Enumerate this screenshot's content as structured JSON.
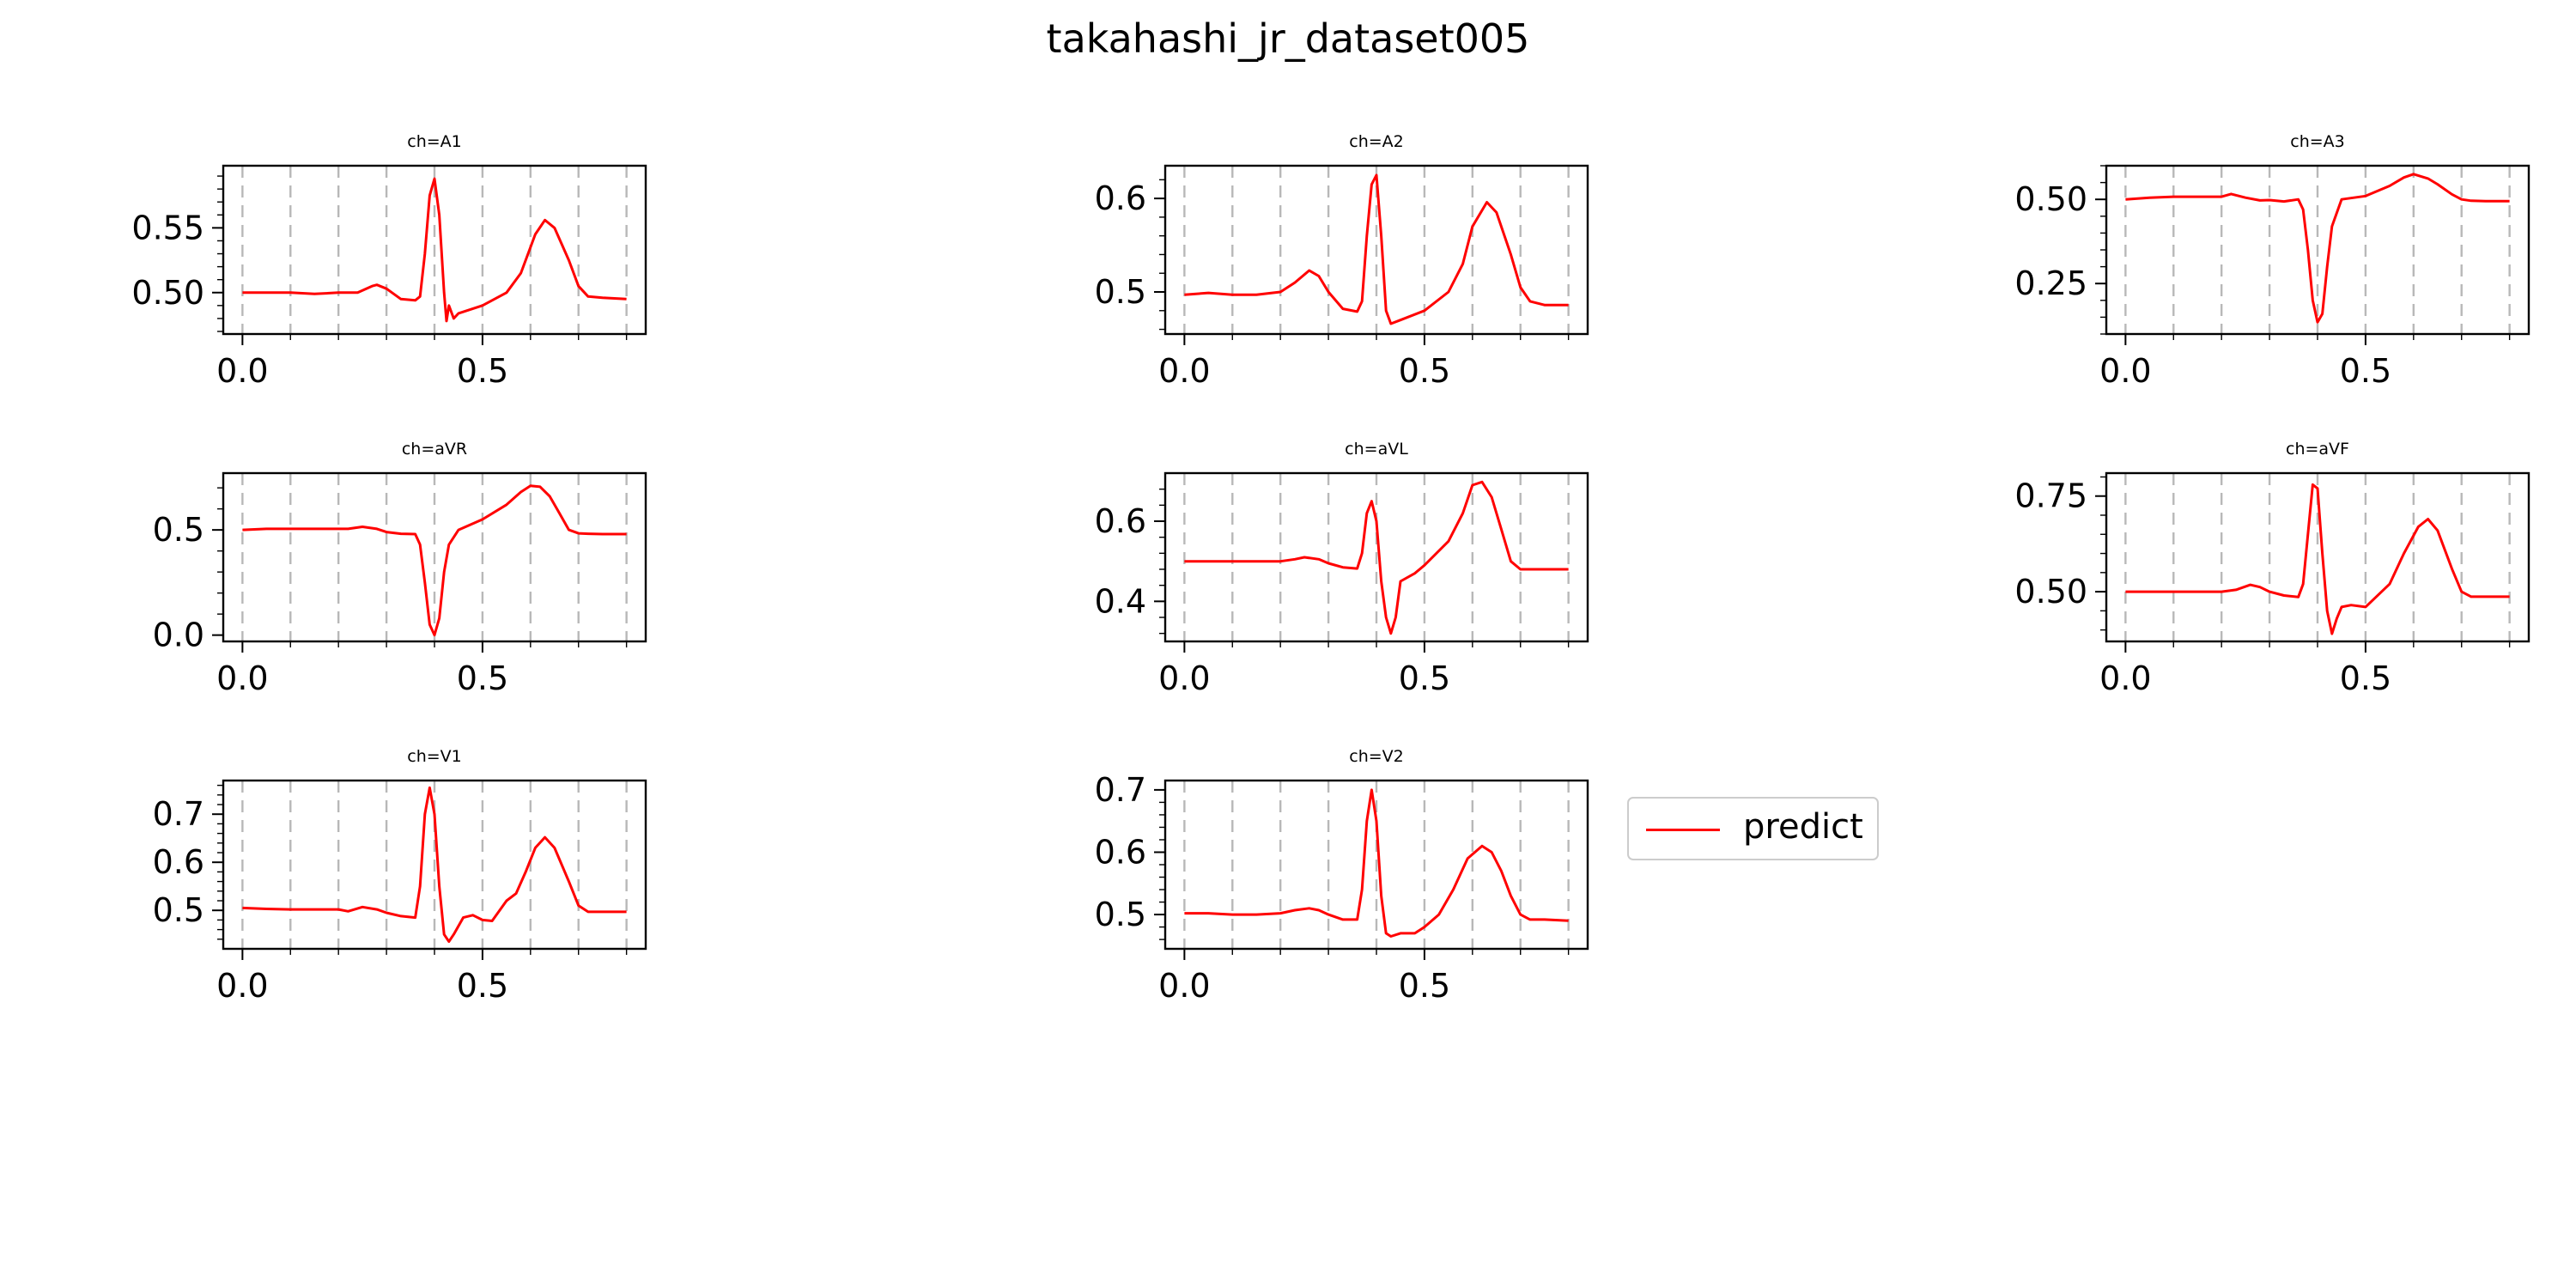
{
  "title": "takahashi_jr_dataset005",
  "legend": {
    "label": "predict",
    "color": "#ff0000",
    "placement": "right of panel ch=V2"
  },
  "grid": {
    "x_vertical_dashed": true,
    "x_grid_step": 0.1,
    "color": "#b8b8b8"
  },
  "chart_data": [
    {
      "type": "line",
      "title": "ch=A1",
      "xlim": [
        -0.04,
        0.84
      ],
      "ylim": [
        0.468,
        0.598
      ],
      "xticks": [
        0.0,
        0.5
      ],
      "xtick_labels": [
        "0.0",
        "0.5"
      ],
      "yticks": [
        0.5,
        0.55
      ],
      "ytick_labels": [
        "0.50",
        "0.55"
      ],
      "series": [
        {
          "name": "predict",
          "color": "#ff0000",
          "x": [
            0.0,
            0.05,
            0.1,
            0.15,
            0.2,
            0.24,
            0.27,
            0.28,
            0.3,
            0.33,
            0.36,
            0.37,
            0.38,
            0.39,
            0.4,
            0.41,
            0.42,
            0.425,
            0.43,
            0.44,
            0.45,
            0.5,
            0.55,
            0.58,
            0.61,
            0.63,
            0.65,
            0.68,
            0.7,
            0.72,
            0.75,
            0.8
          ],
          "y": [
            0.5,
            0.5,
            0.5,
            0.499,
            0.5,
            0.5,
            0.505,
            0.506,
            0.503,
            0.495,
            0.494,
            0.497,
            0.53,
            0.575,
            0.588,
            0.56,
            0.5,
            0.478,
            0.49,
            0.48,
            0.484,
            0.49,
            0.5,
            0.515,
            0.545,
            0.556,
            0.55,
            0.525,
            0.505,
            0.497,
            0.496,
            0.495
          ]
        }
      ]
    },
    {
      "type": "line",
      "title": "ch=A2",
      "xlim": [
        -0.04,
        0.84
      ],
      "ylim": [
        0.455,
        0.635
      ],
      "xticks": [
        0.0,
        0.5
      ],
      "xtick_labels": [
        "0.0",
        "0.5"
      ],
      "yticks": [
        0.5,
        0.6
      ],
      "ytick_labels": [
        "0.5",
        "0.6"
      ],
      "series": [
        {
          "name": "predict",
          "color": "#ff0000",
          "x": [
            0.0,
            0.05,
            0.1,
            0.15,
            0.2,
            0.23,
            0.26,
            0.28,
            0.3,
            0.33,
            0.36,
            0.37,
            0.38,
            0.39,
            0.4,
            0.41,
            0.42,
            0.43,
            0.45,
            0.5,
            0.55,
            0.58,
            0.6,
            0.63,
            0.65,
            0.68,
            0.7,
            0.72,
            0.75,
            0.8
          ],
          "y": [
            0.497,
            0.499,
            0.497,
            0.497,
            0.5,
            0.51,
            0.523,
            0.517,
            0.5,
            0.482,
            0.479,
            0.49,
            0.56,
            0.615,
            0.625,
            0.56,
            0.48,
            0.466,
            0.47,
            0.48,
            0.5,
            0.53,
            0.57,
            0.596,
            0.585,
            0.54,
            0.505,
            0.49,
            0.486,
            0.486
          ]
        }
      ]
    },
    {
      "type": "line",
      "title": "ch=A3",
      "xlim": [
        -0.04,
        0.84
      ],
      "ylim": [
        0.1,
        0.6
      ],
      "xticks": [
        0.0,
        0.5
      ],
      "xtick_labels": [
        "0.0",
        "0.5"
      ],
      "yticks": [
        0.25,
        0.5
      ],
      "ytick_labels": [
        "0.25",
        "0.50"
      ],
      "series": [
        {
          "name": "predict",
          "color": "#ff0000",
          "x": [
            0.0,
            0.05,
            0.1,
            0.15,
            0.2,
            0.22,
            0.25,
            0.28,
            0.3,
            0.33,
            0.36,
            0.37,
            0.38,
            0.39,
            0.4,
            0.41,
            0.42,
            0.43,
            0.45,
            0.5,
            0.55,
            0.58,
            0.6,
            0.63,
            0.65,
            0.68,
            0.7,
            0.72,
            0.75,
            0.8
          ],
          "y": [
            0.5,
            0.505,
            0.508,
            0.508,
            0.508,
            0.516,
            0.505,
            0.497,
            0.498,
            0.494,
            0.5,
            0.47,
            0.35,
            0.2,
            0.135,
            0.16,
            0.3,
            0.42,
            0.5,
            0.51,
            0.54,
            0.565,
            0.575,
            0.562,
            0.545,
            0.515,
            0.5,
            0.496,
            0.495,
            0.495
          ]
        }
      ]
    },
    {
      "type": "line",
      "title": "ch=aVR",
      "xlim": [
        -0.04,
        0.84
      ],
      "ylim": [
        -0.03,
        0.77
      ],
      "xticks": [
        0.0,
        0.5
      ],
      "xtick_labels": [
        "0.0",
        "0.5"
      ],
      "yticks": [
        0.0,
        0.5
      ],
      "ytick_labels": [
        "0.0",
        "0.5"
      ],
      "series": [
        {
          "name": "predict",
          "color": "#ff0000",
          "x": [
            0.0,
            0.05,
            0.1,
            0.15,
            0.2,
            0.22,
            0.25,
            0.28,
            0.3,
            0.33,
            0.36,
            0.37,
            0.38,
            0.39,
            0.4,
            0.41,
            0.42,
            0.43,
            0.45,
            0.5,
            0.55,
            0.58,
            0.6,
            0.62,
            0.64,
            0.66,
            0.68,
            0.7,
            0.72,
            0.75,
            0.8
          ],
          "y": [
            0.5,
            0.505,
            0.505,
            0.505,
            0.505,
            0.505,
            0.515,
            0.505,
            0.49,
            0.482,
            0.48,
            0.43,
            0.25,
            0.05,
            0.0,
            0.08,
            0.3,
            0.43,
            0.5,
            0.55,
            0.62,
            0.68,
            0.71,
            0.705,
            0.66,
            0.58,
            0.5,
            0.484,
            0.482,
            0.48,
            0.48
          ]
        }
      ]
    },
    {
      "type": "line",
      "title": "ch=aVL",
      "xlim": [
        -0.04,
        0.84
      ],
      "ylim": [
        0.3,
        0.72
      ],
      "xticks": [
        0.0,
        0.5
      ],
      "xtick_labels": [
        "0.0",
        "0.5"
      ],
      "yticks": [
        0.4,
        0.6
      ],
      "ytick_labels": [
        "0.4",
        "0.6"
      ],
      "series": [
        {
          "name": "predict",
          "color": "#ff0000",
          "x": [
            0.0,
            0.05,
            0.1,
            0.15,
            0.2,
            0.23,
            0.25,
            0.28,
            0.3,
            0.33,
            0.36,
            0.37,
            0.38,
            0.39,
            0.4,
            0.41,
            0.42,
            0.43,
            0.44,
            0.45,
            0.48,
            0.5,
            0.55,
            0.58,
            0.6,
            0.62,
            0.64,
            0.66,
            0.68,
            0.7,
            0.72,
            0.75,
            0.8
          ],
          "y": [
            0.5,
            0.5,
            0.5,
            0.5,
            0.5,
            0.505,
            0.51,
            0.505,
            0.495,
            0.485,
            0.482,
            0.52,
            0.62,
            0.65,
            0.6,
            0.45,
            0.36,
            0.32,
            0.36,
            0.45,
            0.47,
            0.49,
            0.55,
            0.62,
            0.69,
            0.698,
            0.66,
            0.58,
            0.5,
            0.48,
            0.48,
            0.48,
            0.48
          ]
        }
      ]
    },
    {
      "type": "line",
      "title": "ch=aVF",
      "xlim": [
        -0.04,
        0.84
      ],
      "ylim": [
        0.37,
        0.81
      ],
      "xticks": [
        0.0,
        0.5
      ],
      "xtick_labels": [
        "0.0",
        "0.5"
      ],
      "yticks": [
        0.5,
        0.75
      ],
      "ytick_labels": [
        "0.50",
        "0.75"
      ],
      "series": [
        {
          "name": "predict",
          "color": "#ff0000",
          "x": [
            0.0,
            0.05,
            0.1,
            0.15,
            0.2,
            0.23,
            0.26,
            0.28,
            0.3,
            0.33,
            0.36,
            0.37,
            0.38,
            0.39,
            0.4,
            0.41,
            0.42,
            0.43,
            0.44,
            0.45,
            0.47,
            0.5,
            0.55,
            0.58,
            0.61,
            0.63,
            0.65,
            0.68,
            0.7,
            0.72,
            0.75,
            0.8
          ],
          "y": [
            0.5,
            0.5,
            0.5,
            0.5,
            0.5,
            0.505,
            0.518,
            0.512,
            0.5,
            0.49,
            0.486,
            0.52,
            0.65,
            0.78,
            0.77,
            0.6,
            0.45,
            0.39,
            0.43,
            0.46,
            0.465,
            0.46,
            0.52,
            0.6,
            0.67,
            0.69,
            0.66,
            0.56,
            0.5,
            0.487,
            0.487,
            0.487
          ]
        }
      ]
    },
    {
      "type": "line",
      "title": "ch=V1",
      "xlim": [
        -0.04,
        0.84
      ],
      "ylim": [
        0.42,
        0.77
      ],
      "xticks": [
        0.0,
        0.5
      ],
      "xtick_labels": [
        "0.0",
        "0.5"
      ],
      "yticks": [
        0.5,
        0.6,
        0.7
      ],
      "ytick_labels": [
        "0.5",
        "0.6",
        "0.7"
      ],
      "series": [
        {
          "name": "predict",
          "color": "#ff0000",
          "x": [
            0.0,
            0.05,
            0.1,
            0.15,
            0.2,
            0.22,
            0.25,
            0.28,
            0.3,
            0.33,
            0.36,
            0.37,
            0.38,
            0.39,
            0.4,
            0.41,
            0.42,
            0.43,
            0.44,
            0.46,
            0.48,
            0.5,
            0.52,
            0.55,
            0.57,
            0.59,
            0.61,
            0.63,
            0.65,
            0.68,
            0.7,
            0.72,
            0.75,
            0.8
          ],
          "y": [
            0.505,
            0.503,
            0.502,
            0.502,
            0.502,
            0.498,
            0.507,
            0.502,
            0.495,
            0.488,
            0.485,
            0.55,
            0.7,
            0.755,
            0.7,
            0.55,
            0.45,
            0.435,
            0.45,
            0.485,
            0.49,
            0.48,
            0.478,
            0.52,
            0.535,
            0.58,
            0.63,
            0.652,
            0.63,
            0.56,
            0.51,
            0.497,
            0.497,
            0.497
          ]
        }
      ]
    },
    {
      "type": "line",
      "title": "ch=V2",
      "xlim": [
        -0.04,
        0.84
      ],
      "ylim": [
        0.445,
        0.715
      ],
      "xticks": [
        0.0,
        0.5
      ],
      "xtick_labels": [
        "0.0",
        "0.5"
      ],
      "yticks": [
        0.5,
        0.6,
        0.7
      ],
      "ytick_labels": [
        "0.5",
        "0.6",
        "0.7"
      ],
      "series": [
        {
          "name": "predict",
          "color": "#ff0000",
          "x": [
            0.0,
            0.05,
            0.1,
            0.15,
            0.2,
            0.23,
            0.26,
            0.28,
            0.3,
            0.33,
            0.36,
            0.37,
            0.38,
            0.39,
            0.4,
            0.41,
            0.42,
            0.43,
            0.45,
            0.48,
            0.5,
            0.53,
            0.56,
            0.59,
            0.62,
            0.64,
            0.66,
            0.68,
            0.7,
            0.72,
            0.75,
            0.8
          ],
          "y": [
            0.502,
            0.502,
            0.5,
            0.5,
            0.502,
            0.507,
            0.51,
            0.507,
            0.5,
            0.492,
            0.492,
            0.54,
            0.65,
            0.7,
            0.65,
            0.53,
            0.47,
            0.465,
            0.47,
            0.47,
            0.48,
            0.5,
            0.54,
            0.59,
            0.61,
            0.6,
            0.57,
            0.53,
            0.5,
            0.492,
            0.492,
            0.49
          ]
        }
      ]
    }
  ]
}
